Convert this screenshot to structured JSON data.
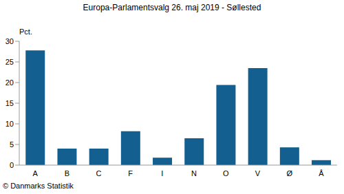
{
  "chart_data": {
    "type": "bar",
    "title": "Europa-Parlamentsvalg 26. maj 2019 - Søllested",
    "y_label": "Pct.",
    "annotations": [
      "© Danmarks Statistik"
    ],
    "categories": [
      "A",
      "B",
      "C",
      "F",
      "I",
      "N",
      "O",
      "V",
      "Ø",
      "Å"
    ],
    "values": [
      27.8,
      4.0,
      4.0,
      8.2,
      1.8,
      6.5,
      19.4,
      23.5,
      4.3,
      1.2
    ],
    "color": "#135f8f",
    "ylim": [
      0,
      30
    ],
    "yticks": [
      0,
      5,
      10,
      15,
      20,
      25,
      30
    ],
    "grid": false
  }
}
